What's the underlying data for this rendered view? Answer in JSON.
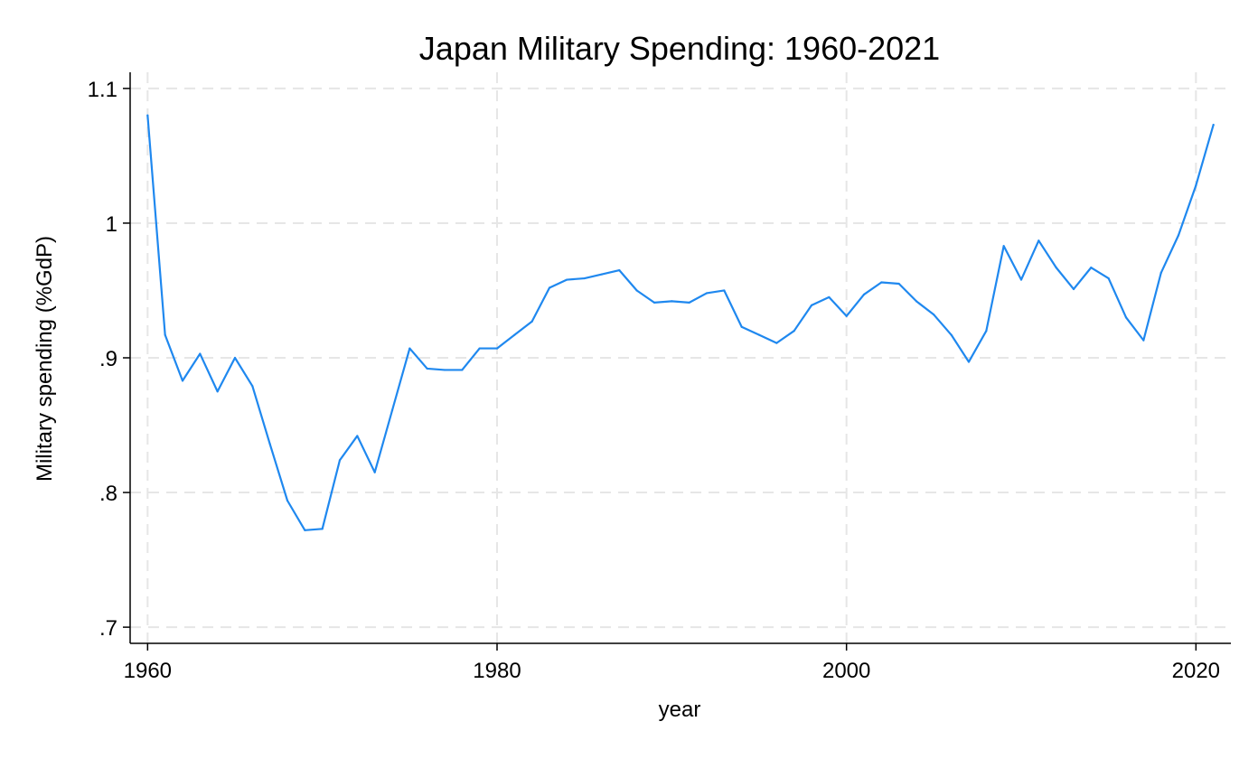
{
  "chart_data": {
    "type": "line",
    "title": "Japan Military Spending: 1960-2021",
    "xlabel": "year",
    "ylabel": "Military spending (%GdP)",
    "xlim": [
      1959,
      2022
    ],
    "ylim": [
      0.688,
      1.112
    ],
    "grid": true,
    "x_ticks": [
      {
        "value": 1960,
        "label": "1960"
      },
      {
        "value": 1980,
        "label": "1980"
      },
      {
        "value": 2000,
        "label": "2000"
      },
      {
        "value": 2020,
        "label": "2020"
      }
    ],
    "y_ticks": [
      {
        "value": 0.7,
        "label": ".7"
      },
      {
        "value": 0.8,
        "label": ".8"
      },
      {
        "value": 0.9,
        "label": ".9"
      },
      {
        "value": 1.0,
        "label": "1"
      },
      {
        "value": 1.1,
        "label": "1.1"
      }
    ],
    "series": [
      {
        "color": "#1f88ef",
        "x": [
          1960,
          1961,
          1962,
          1963,
          1964,
          1965,
          1966,
          1967,
          1968,
          1969,
          1970,
          1971,
          1972,
          1973,
          1974,
          1975,
          1976,
          1977,
          1978,
          1979,
          1980,
          1981,
          1982,
          1983,
          1984,
          1985,
          1986,
          1987,
          1988,
          1989,
          1990,
          1991,
          1992,
          1993,
          1994,
          1995,
          1996,
          1997,
          1998,
          1999,
          2000,
          2001,
          2002,
          2003,
          2004,
          2005,
          2006,
          2007,
          2008,
          2009,
          2010,
          2011,
          2012,
          2013,
          2014,
          2015,
          2016,
          2017,
          2018,
          2019,
          2020,
          2021
        ],
        "y": [
          1.08,
          0.917,
          0.883,
          0.903,
          0.875,
          0.9,
          0.879,
          0.836,
          0.794,
          0.772,
          0.773,
          0.824,
          0.842,
          0.815,
          0.861,
          0.907,
          0.892,
          0.891,
          0.891,
          0.907,
          0.907,
          0.917,
          0.927,
          0.952,
          0.958,
          0.959,
          0.962,
          0.965,
          0.95,
          0.941,
          0.942,
          0.941,
          0.948,
          0.95,
          0.923,
          0.917,
          0.911,
          0.92,
          0.939,
          0.945,
          0.931,
          0.947,
          0.956,
          0.955,
          0.942,
          0.932,
          0.917,
          0.897,
          0.92,
          0.983,
          0.958,
          0.987,
          0.967,
          0.951,
          0.967,
          0.959,
          0.93,
          0.913,
          0.963,
          0.991,
          1.028,
          1.073
        ]
      }
    ]
  }
}
